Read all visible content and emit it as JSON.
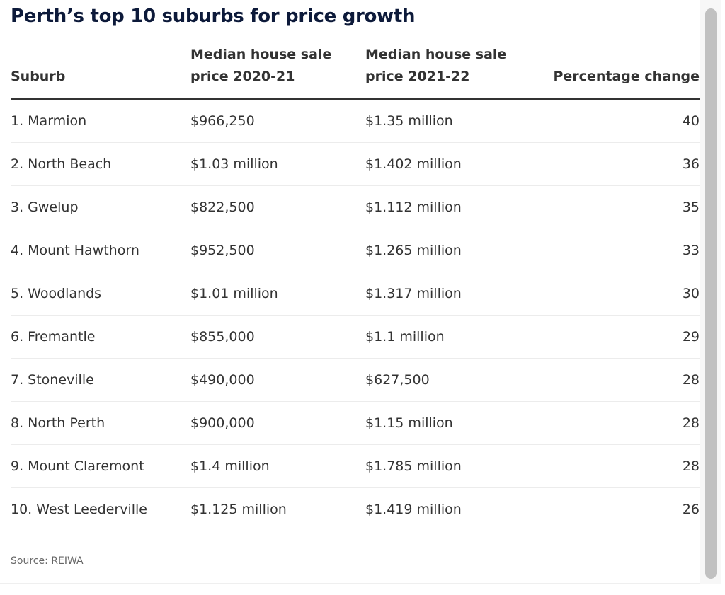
{
  "title": "Perth’s top 10 suburbs for price growth",
  "source": "Source: REIWA",
  "chart_data": {
    "type": "table",
    "title": "Perth’s top 10 suburbs for price growth",
    "columns": [
      "Suburb",
      "Median house sale price 2020-21",
      "Median house sale price 2021-22",
      "Percentage change"
    ],
    "rows": [
      [
        "1. Marmion",
        "$966,250",
        "$1.35 million",
        "40"
      ],
      [
        "2. North Beach",
        "$1.03 million",
        "$1.402 million",
        "36"
      ],
      [
        "3. Gwelup",
        "$822,500",
        "$1.112 million",
        "35"
      ],
      [
        "4. Mount Hawthorn",
        "$952,500",
        "$1.265 million",
        "33"
      ],
      [
        "5. Woodlands",
        "$1.01 million",
        "$1.317 million",
        "30"
      ],
      [
        "6. Fremantle",
        "$855,000",
        "$1.1 million",
        "29"
      ],
      [
        "7. Stoneville",
        "$490,000",
        "$627,500",
        "28"
      ],
      [
        "8. North Perth",
        "$900,000",
        "$1.15 million",
        "28"
      ],
      [
        "9. Mount Claremont",
        "$1.4 million",
        "$1.785 million",
        "28"
      ],
      [
        "10. West Leederville",
        "$1.125 million",
        "$1.419 million",
        "26"
      ]
    ],
    "source": "Source: REIWA"
  },
  "colors": {
    "title": "#0d1a3a",
    "text": "#333333",
    "rule": "#333333"
  }
}
